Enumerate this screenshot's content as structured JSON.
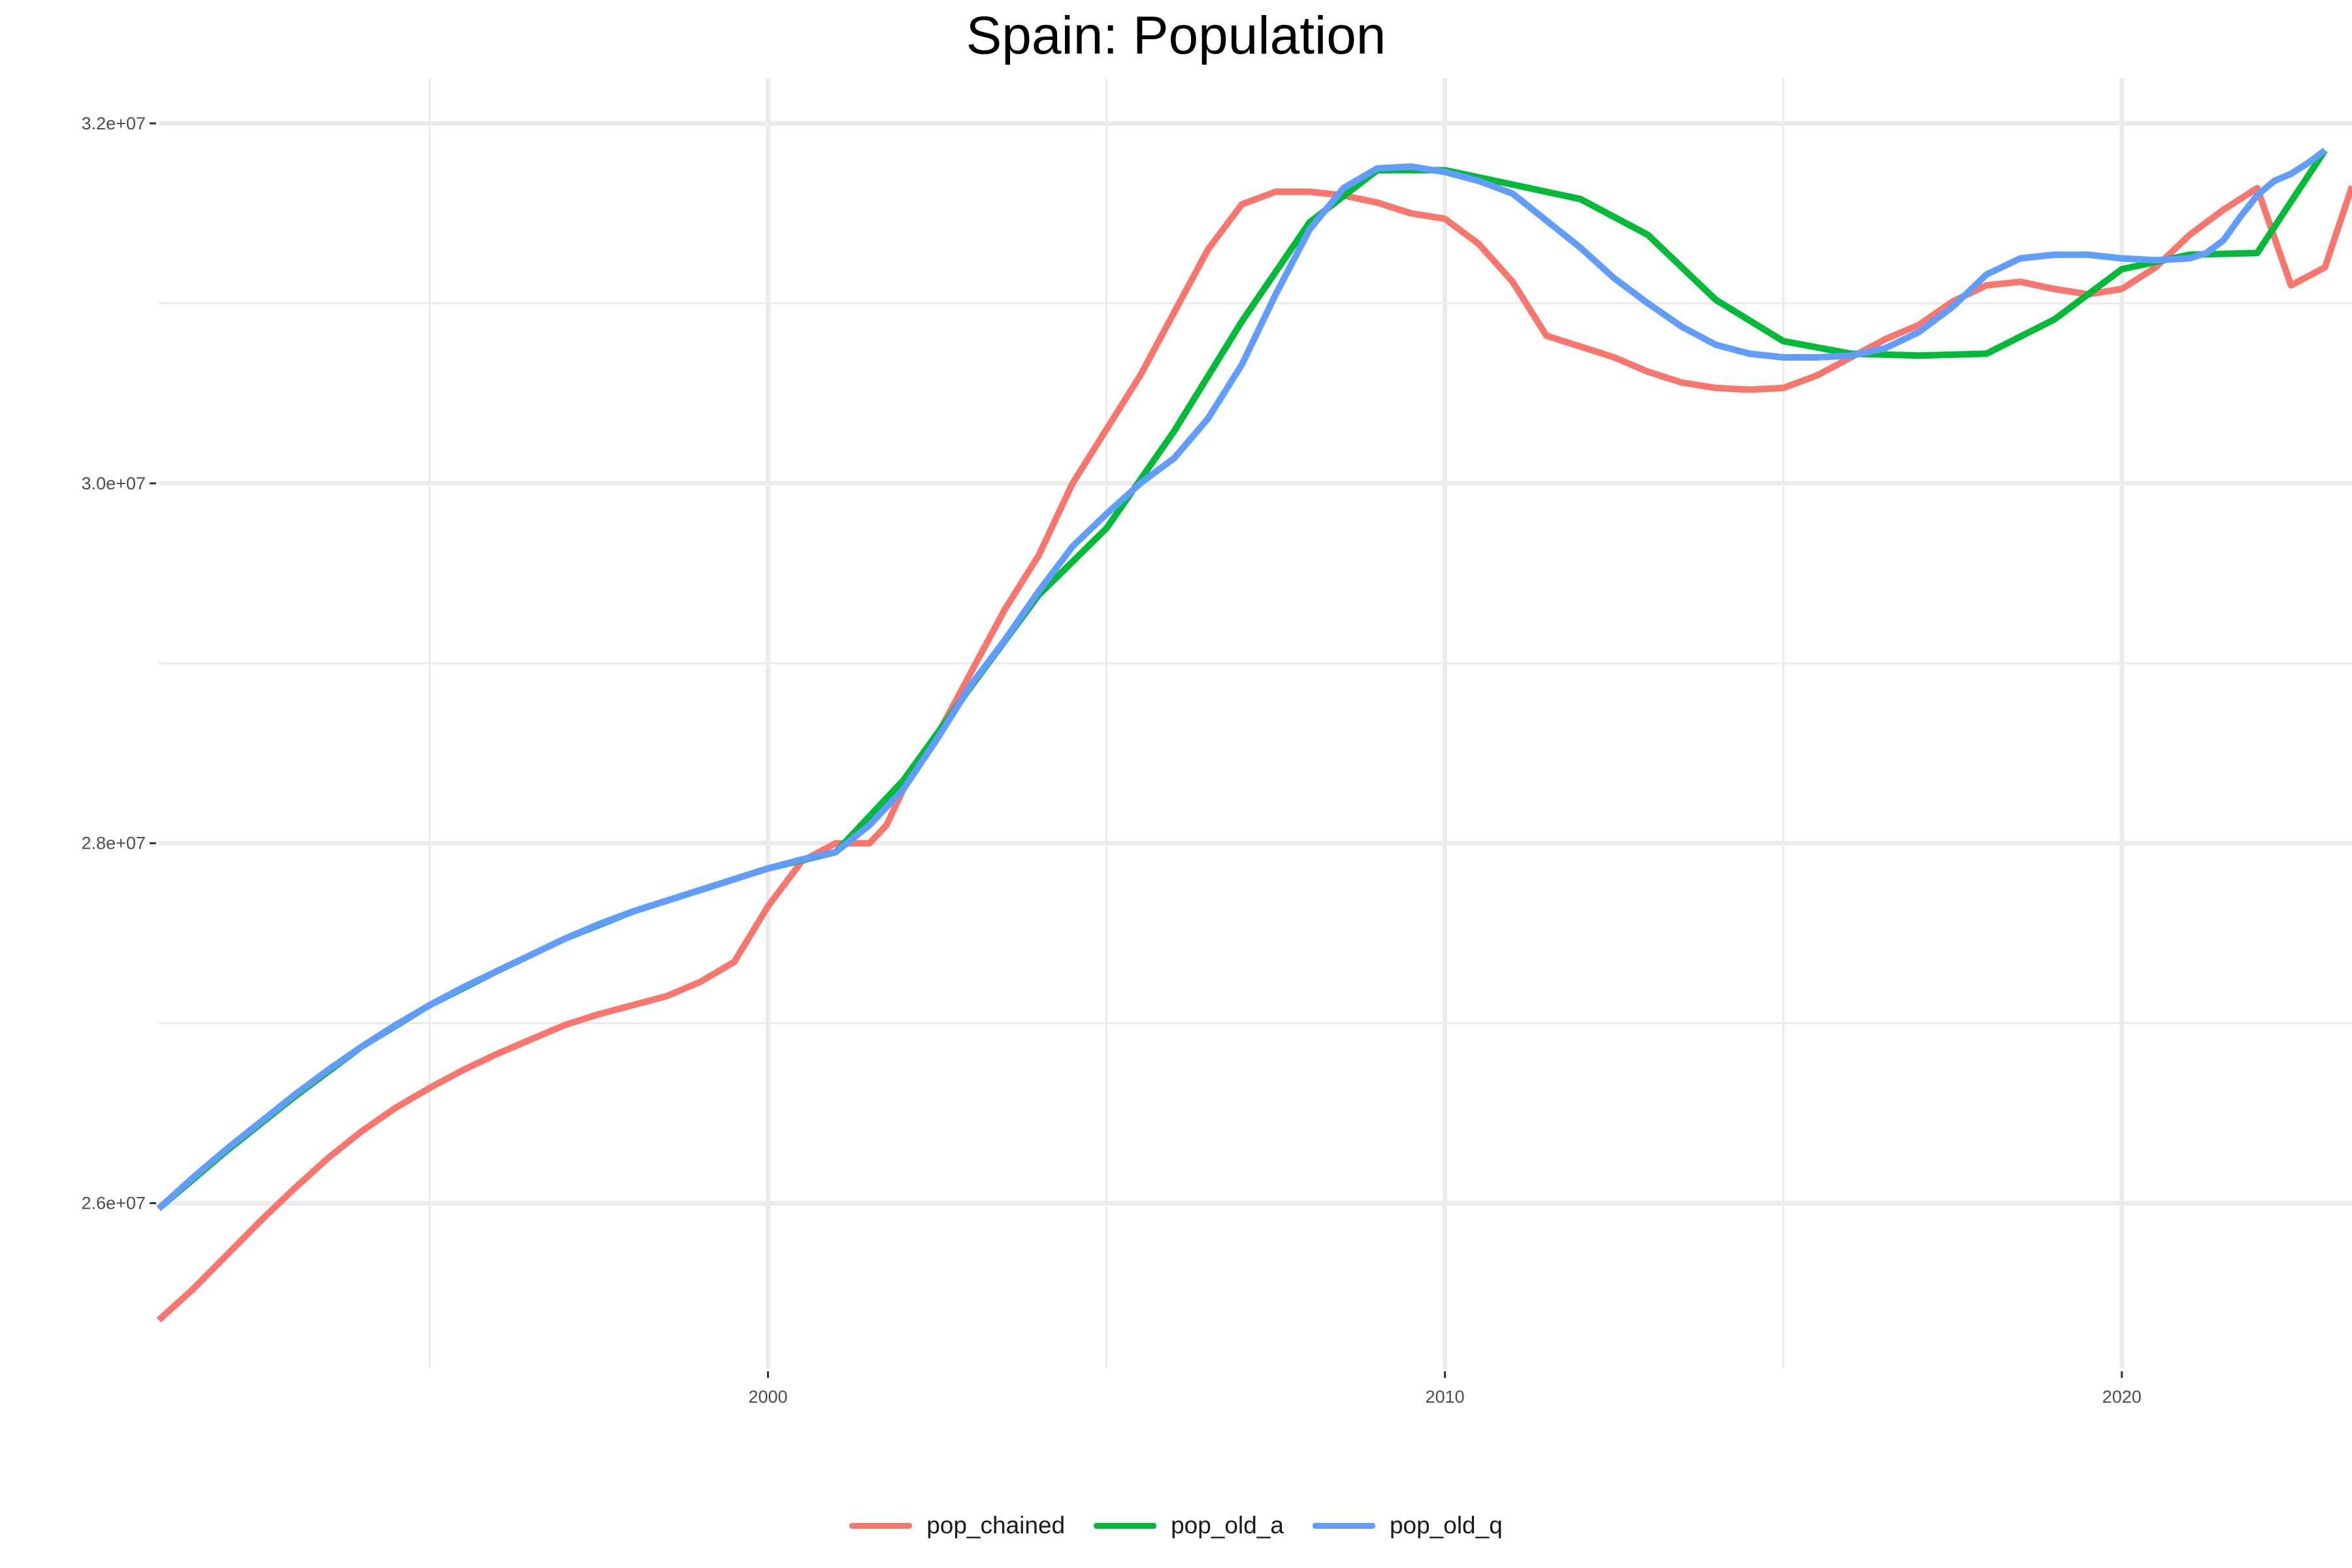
{
  "chart_data": {
    "type": "line",
    "title": "Spain: Population",
    "xlabel": "",
    "ylabel": "",
    "xlim": [
      1991.0,
      2023.4
    ],
    "ylim": [
      25080000,
      32250000
    ],
    "x_ticks": [
      2000,
      2010,
      2020
    ],
    "x_tick_labels": [
      "2000",
      "2010",
      "2020"
    ],
    "y_ticks": [
      26000000,
      28000000,
      30000000,
      32000000
    ],
    "y_tick_labels": [
      "2.6e+07",
      "2.8e+07",
      "3.0e+07",
      "3.2e+07"
    ],
    "grid": true,
    "legend_position": "bottom",
    "series": [
      {
        "name": "pop_chained",
        "color": "#F8766D",
        "x": [
          1991.0,
          1991.5,
          1992.0,
          1992.5,
          1993.0,
          1993.5,
          1994.0,
          1994.5,
          1995.0,
          1995.5,
          1996.0,
          1996.5,
          1997.0,
          1997.5,
          1998.0,
          1998.5,
          1999.0,
          1999.5,
          2000.0,
          2000.5,
          2001.0,
          2001.5,
          2001.75,
          2002.0,
          2002.5,
          2003.0,
          2003.5,
          2004.0,
          2004.5,
          2005.0,
          2005.5,
          2006.0,
          2006.5,
          2007.0,
          2007.5,
          2008.0,
          2008.5,
          2009.0,
          2009.5,
          2010.0,
          2010.5,
          2011.0,
          2011.5,
          2012.0,
          2012.5,
          2013.0,
          2013.5,
          2014.0,
          2014.5,
          2015.0,
          2015.5,
          2016.0,
          2016.5,
          2017.0,
          2017.5,
          2018.0,
          2018.5,
          2019.0,
          2019.5,
          2020.0,
          2020.5,
          2021.0,
          2021.5,
          2022.0,
          2022.5,
          2023.0,
          2023.4
        ],
        "values": [
          25350000,
          25520000,
          25710000,
          25900000,
          26080000,
          26250000,
          26400000,
          26530000,
          26640000,
          26740000,
          26830000,
          26910000,
          26990000,
          27050000,
          27100000,
          27150000,
          27230000,
          27340000,
          27650000,
          27900000,
          28000000,
          28000000,
          28100000,
          28300000,
          28600000,
          28950000,
          29300000,
          29600000,
          30000000,
          30300000,
          30600000,
          30950000,
          31300000,
          31550000,
          31620000,
          31620000,
          31600000,
          31560000,
          31500000,
          31470000,
          31330000,
          31120000,
          30820000,
          30760000,
          30700000,
          30620000,
          30560000,
          30530000,
          30520000,
          30530000,
          30600000,
          30700000,
          30800000,
          30880000,
          31010000,
          31100000,
          31120000,
          31080000,
          31050000,
          31080000,
          31200000,
          31380000,
          31520000,
          31640000,
          31100000,
          31200000,
          31650000
        ]
      },
      {
        "name": "pop_old_a",
        "color": "#00BA38",
        "x": [
          1991.0,
          1992.0,
          1993.0,
          1994.0,
          1995.0,
          1996.0,
          1997.0,
          1998.0,
          1999.0,
          2000.0,
          2001.0,
          2002.0,
          2003.0,
          2004.0,
          2005.0,
          2006.0,
          2007.0,
          2008.0,
          2009.0,
          2010.0,
          2011.0,
          2012.0,
          2013.0,
          2014.0,
          2015.0,
          2016.0,
          2017.0,
          2018.0,
          2019.0,
          2020.0,
          2021.0,
          2022.0,
          2023.0
        ],
        "values": [
          25970000,
          26290000,
          26590000,
          26870000,
          27100000,
          27290000,
          27470000,
          27620000,
          27740000,
          27860000,
          27950000,
          28350000,
          28870000,
          29380000,
          29750000,
          30290000,
          30900000,
          31450000,
          31740000,
          31740000,
          31660000,
          31580000,
          31380000,
          31020000,
          30790000,
          30720000,
          30710000,
          30720000,
          30910000,
          31190000,
          31270000,
          31280000,
          31850000
        ]
      },
      {
        "name": "pop_old_q",
        "color": "#619CFF",
        "x": [
          1991.0,
          1991.5,
          1992.0,
          1992.5,
          1993.0,
          1993.5,
          1994.0,
          1994.5,
          1995.0,
          1995.5,
          1996.0,
          1996.5,
          1997.0,
          1997.5,
          1998.0,
          1998.5,
          1999.0,
          1999.5,
          2000.0,
          2000.5,
          2001.0,
          2001.5,
          2002.0,
          2002.5,
          2003.0,
          2003.5,
          2004.0,
          2004.5,
          2005.0,
          2005.5,
          2006.0,
          2006.5,
          2007.0,
          2007.5,
          2008.0,
          2008.5,
          2009.0,
          2009.5,
          2010.0,
          2010.5,
          2011.0,
          2011.5,
          2012.0,
          2012.5,
          2013.0,
          2013.5,
          2014.0,
          2014.5,
          2015.0,
          2015.5,
          2016.0,
          2016.5,
          2017.0,
          2017.5,
          2018.0,
          2018.5,
          2019.0,
          2019.5,
          2020.0,
          2020.5,
          2021.0,
          2021.25,
          2021.5,
          2021.75,
          2022.0,
          2022.25,
          2022.5,
          2022.75,
          2023.0
        ],
        "values": [
          25970000,
          26140000,
          26300000,
          26450000,
          26600000,
          26740000,
          26870000,
          26990000,
          27100000,
          27200000,
          27290000,
          27380000,
          27470000,
          27550000,
          27620000,
          27680000,
          27740000,
          27800000,
          27860000,
          27910000,
          27950000,
          28100000,
          28300000,
          28580000,
          28880000,
          29130000,
          29400000,
          29650000,
          29830000,
          30000000,
          30140000,
          30360000,
          30660000,
          31050000,
          31410000,
          31640000,
          31750000,
          31760000,
          31730000,
          31680000,
          31610000,
          31460000,
          31310000,
          31140000,
          31000000,
          30870000,
          30770000,
          30720000,
          30700000,
          30700000,
          30710000,
          30750000,
          30840000,
          30980000,
          31160000,
          31250000,
          31270000,
          31270000,
          31250000,
          31240000,
          31250000,
          31280000,
          31350000,
          31480000,
          31600000,
          31680000,
          31720000,
          31780000,
          31850000
        ]
      }
    ]
  }
}
